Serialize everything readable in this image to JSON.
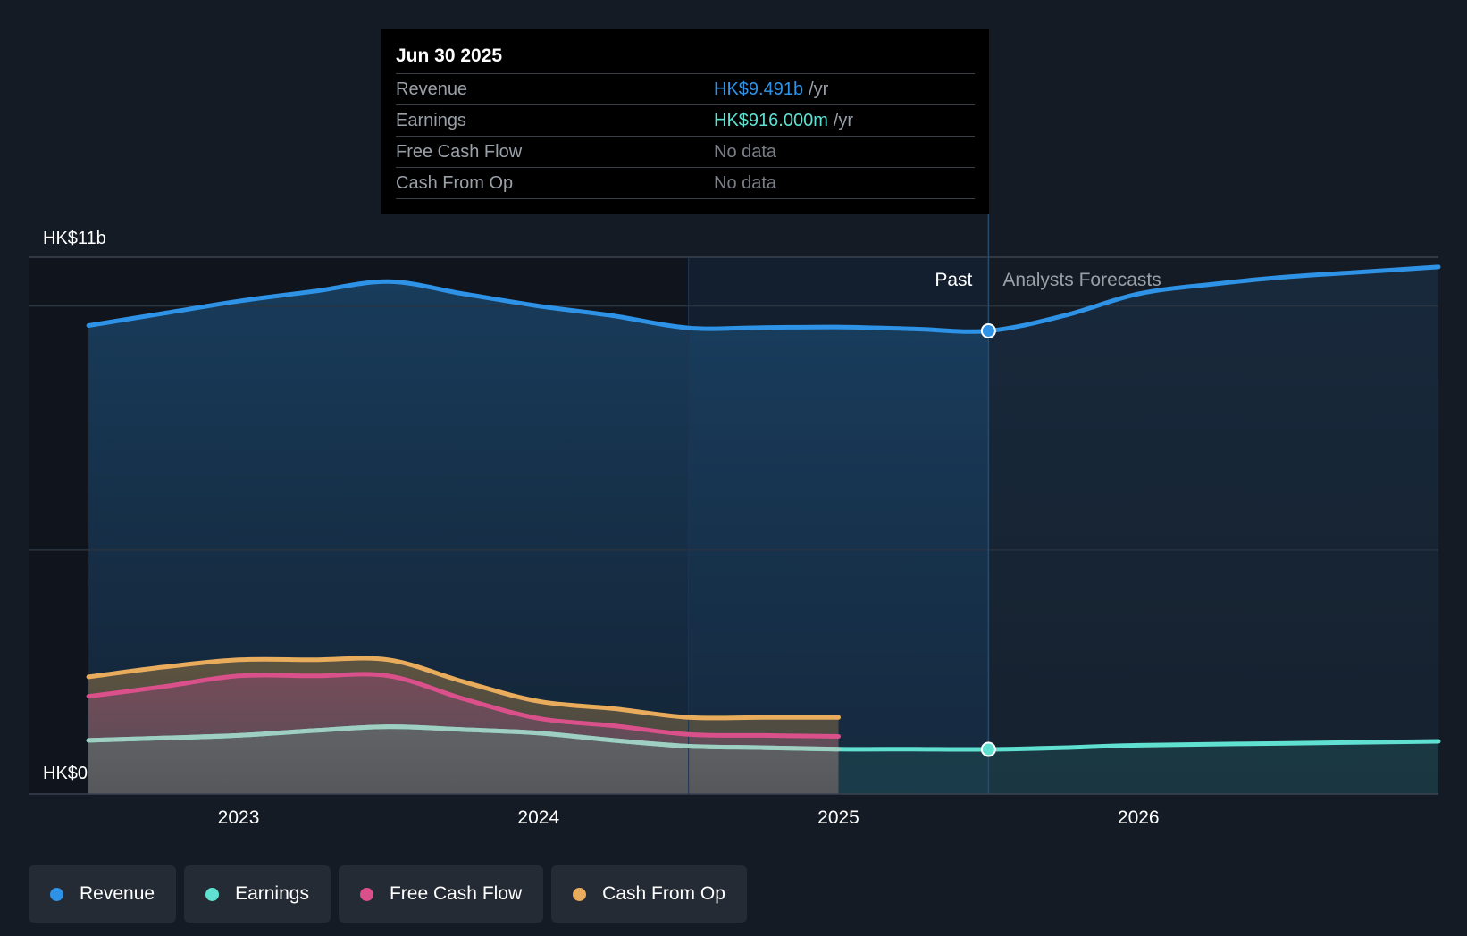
{
  "tooltip": {
    "date": "Jun 30 2025",
    "rows": [
      {
        "label": "Revenue",
        "value": "HK$9.491b",
        "unit": "/yr",
        "color": "#2e93e6"
      },
      {
        "label": "Earnings",
        "value": "HK$916.000m",
        "unit": "/yr",
        "color": "#5fe0d0"
      },
      {
        "label": "Free Cash Flow",
        "value": "No data",
        "unit": "",
        "color": "#7a7f87"
      },
      {
        "label": "Cash From Op",
        "value": "No data",
        "unit": "",
        "color": "#7a7f87"
      }
    ]
  },
  "legend": [
    {
      "label": "Revenue",
      "color": "#2e93e6"
    },
    {
      "label": "Earnings",
      "color": "#5fe0d0"
    },
    {
      "label": "Free Cash Flow",
      "color": "#d9508a"
    },
    {
      "label": "Cash From Op",
      "color": "#e8ac5c"
    }
  ],
  "chart_data": {
    "type": "line",
    "y_axis_labels": [
      "HK$11b",
      "HK$0"
    ],
    "ylim": [
      0,
      11
    ],
    "x_ticks": [
      {
        "label": "2023",
        "x": 2023.0
      },
      {
        "label": "2024",
        "x": 2024.0
      },
      {
        "label": "2025",
        "x": 2025.0
      },
      {
        "label": "2026",
        "x": 2026.0
      }
    ],
    "xlim": [
      2022.3,
      2027.0
    ],
    "past_label": "Past",
    "forecast_label": "Analysts Forecasts",
    "divider_x": 2025.5,
    "highlight_start_x": 2024.5,
    "grid": true,
    "legend_position": "bottom-left",
    "series": [
      {
        "name": "Revenue",
        "color": "#2e93e6",
        "x": [
          2022.5,
          2022.75,
          2023.0,
          2023.25,
          2023.5,
          2023.75,
          2024.0,
          2024.25,
          2024.5,
          2024.75,
          2025.0,
          2025.25,
          2025.5,
          2025.75,
          2026.0,
          2026.25,
          2026.5,
          2026.75,
          2027.0
        ],
        "y": [
          9.6,
          9.85,
          10.1,
          10.3,
          10.5,
          10.25,
          10.0,
          9.8,
          9.55,
          9.56,
          9.57,
          9.53,
          9.49,
          9.8,
          10.25,
          10.45,
          10.6,
          10.7,
          10.8
        ]
      },
      {
        "name": "Earnings",
        "color": "#5fe0d0",
        "x": [
          2022.5,
          2022.75,
          2023.0,
          2023.25,
          2023.5,
          2023.75,
          2024.0,
          2024.25,
          2024.5,
          2024.75,
          2025.0,
          2025.25,
          2025.5,
          2025.75,
          2026.0,
          2026.5,
          2027.0
        ],
        "y": [
          1.1,
          1.15,
          1.2,
          1.3,
          1.38,
          1.32,
          1.25,
          1.1,
          0.98,
          0.95,
          0.92,
          0.92,
          0.916,
          0.95,
          1.0,
          1.04,
          1.08
        ]
      },
      {
        "name": "Free Cash Flow",
        "color": "#d9508a",
        "x": [
          2022.5,
          2022.75,
          2023.0,
          2023.25,
          2023.5,
          2023.75,
          2024.0,
          2024.25,
          2024.5,
          2024.75,
          2025.0
        ],
        "y": [
          2.0,
          2.2,
          2.42,
          2.42,
          2.42,
          1.95,
          1.55,
          1.4,
          1.22,
          1.2,
          1.18
        ]
      },
      {
        "name": "Cash From Op",
        "color": "#e8ac5c",
        "x": [
          2022.5,
          2022.75,
          2023.0,
          2023.25,
          2023.5,
          2023.75,
          2024.0,
          2024.25,
          2024.5,
          2024.75,
          2025.0
        ],
        "y": [
          2.4,
          2.6,
          2.75,
          2.75,
          2.75,
          2.3,
          1.9,
          1.75,
          1.57,
          1.57,
          1.57
        ]
      }
    ],
    "markers": [
      {
        "series": "Revenue",
        "x": 2025.5,
        "y": 9.491
      },
      {
        "series": "Earnings",
        "x": 2025.5,
        "y": 0.916
      }
    ]
  }
}
